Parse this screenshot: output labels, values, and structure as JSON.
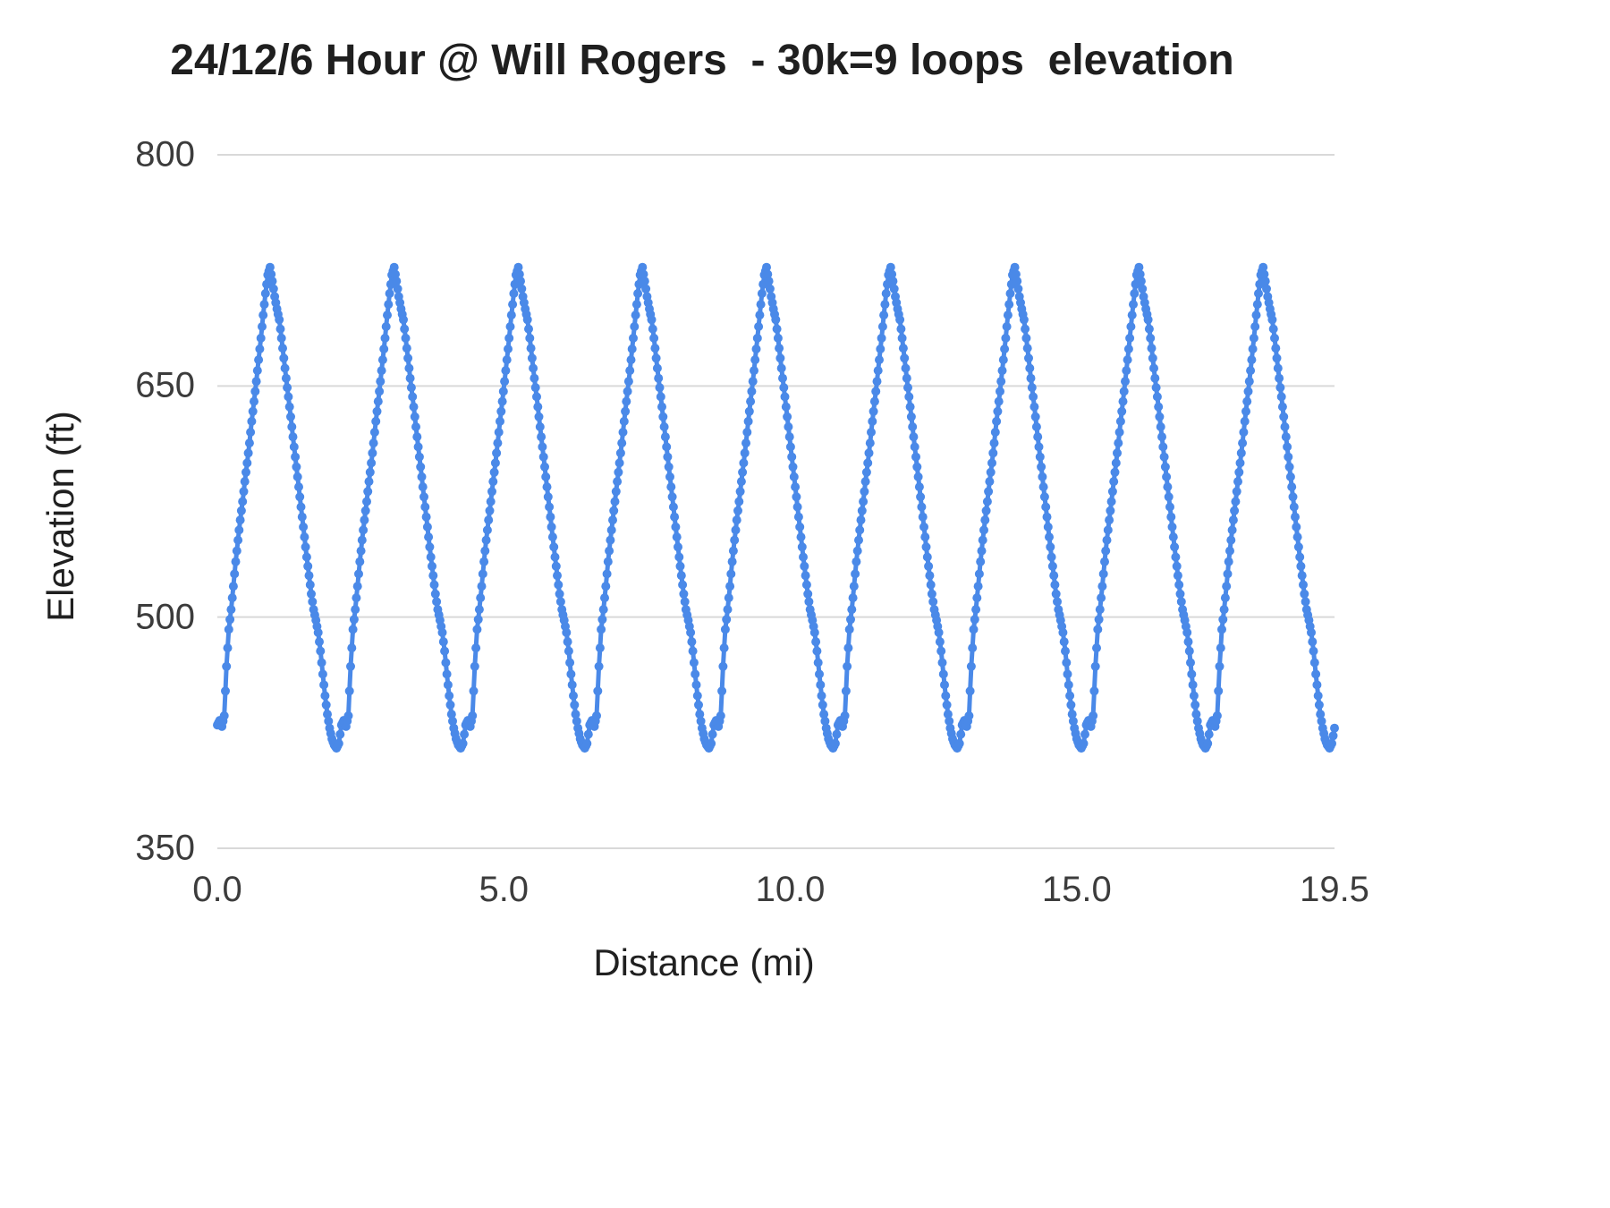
{
  "chart_data": {
    "type": "line",
    "title": "24/12/6 Hour @ Will Rogers  - 30k=9 loops  elevation",
    "xlabel": "Distance (mi)",
    "ylabel": "Elevation (ft)",
    "xlim": [
      0,
      19.5
    ],
    "ylim": [
      350,
      800
    ],
    "x_ticks": [
      {
        "value": 0,
        "label": "0.0"
      },
      {
        "value": 5,
        "label": "5.0"
      },
      {
        "value": 10,
        "label": "10.0"
      },
      {
        "value": 15,
        "label": "15.0"
      },
      {
        "value": 19.5,
        "label": "19.5"
      }
    ],
    "y_ticks": [
      {
        "value": 350,
        "label": "350"
      },
      {
        "value": 500,
        "label": "500"
      },
      {
        "value": 650,
        "label": "650"
      },
      {
        "value": 800,
        "label": "800"
      }
    ],
    "grid": "horizontal",
    "legend": "none",
    "series_name": "elevation",
    "line_color": "#4a89e8",
    "gridline_color": "#d9d9d9",
    "num_loops": 9,
    "loop_length_mi": 2.1667,
    "loop_profile": [
      [
        0.0,
        430
      ],
      [
        0.04,
        433
      ],
      [
        0.08,
        429
      ],
      [
        0.12,
        436
      ],
      [
        0.16,
        468
      ],
      [
        0.2,
        492
      ],
      [
        0.24,
        505
      ],
      [
        0.28,
        520
      ],
      [
        0.32,
        536
      ],
      [
        0.36,
        550
      ],
      [
        0.4,
        563
      ],
      [
        0.44,
        575
      ],
      [
        0.48,
        588
      ],
      [
        0.52,
        600
      ],
      [
        0.56,
        613
      ],
      [
        0.6,
        627
      ],
      [
        0.64,
        640
      ],
      [
        0.68,
        653
      ],
      [
        0.72,
        667
      ],
      [
        0.76,
        681
      ],
      [
        0.8,
        696
      ],
      [
        0.84,
        710
      ],
      [
        0.88,
        722
      ],
      [
        0.92,
        727
      ],
      [
        0.96,
        718
      ],
      [
        1.0,
        708
      ],
      [
        1.04,
        700
      ],
      [
        1.08,
        693
      ],
      [
        1.12,
        681
      ],
      [
        1.16,
        668
      ],
      [
        1.2,
        655
      ],
      [
        1.24,
        643
      ],
      [
        1.28,
        630
      ],
      [
        1.32,
        617
      ],
      [
        1.36,
        604
      ],
      [
        1.4,
        591
      ],
      [
        1.44,
        578
      ],
      [
        1.48,
        565
      ],
      [
        1.52,
        552
      ],
      [
        1.56,
        539
      ],
      [
        1.6,
        527
      ],
      [
        1.64,
        515
      ],
      [
        1.68,
        505
      ],
      [
        1.72,
        498
      ],
      [
        1.76,
        490
      ],
      [
        1.8,
        478
      ],
      [
        1.84,
        463
      ],
      [
        1.88,
        449
      ],
      [
        1.92,
        437
      ],
      [
        1.96,
        428
      ],
      [
        2.0,
        421
      ],
      [
        2.04,
        417
      ],
      [
        2.08,
        415
      ],
      [
        2.12,
        418
      ]
    ],
    "final_point": [
      19.5,
      428
    ]
  }
}
